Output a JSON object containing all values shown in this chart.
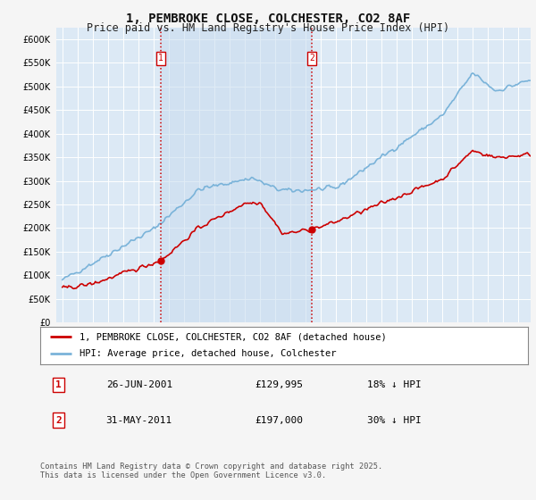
{
  "title": "1, PEMBROKE CLOSE, COLCHESTER, CO2 8AF",
  "subtitle": "Price paid vs. HM Land Registry's House Price Index (HPI)",
  "background_color": "#dce9f5",
  "shade_color": "#dce9f5",
  "grid_color": "#ffffff",
  "line1_color": "#cc0000",
  "line2_color": "#7ab3d9",
  "vline_color": "#cc0000",
  "ylim": [
    0,
    625000
  ],
  "xlim_left": 1994.6,
  "xlim_right": 2025.8,
  "legend_entries": [
    "1, PEMBROKE CLOSE, COLCHESTER, CO2 8AF (detached house)",
    "HPI: Average price, detached house, Colchester"
  ],
  "table_rows": [
    {
      "num": "1",
      "date": "26-JUN-2001",
      "price": "£129,995",
      "hpi": "18% ↓ HPI"
    },
    {
      "num": "2",
      "date": "31-MAY-2011",
      "price": "£197,000",
      "hpi": "30% ↓ HPI"
    }
  ],
  "sale1_x": 2001.48,
  "sale1_y": 129995,
  "sale2_x": 2011.41,
  "sale2_y": 197000,
  "footnote": "Contains HM Land Registry data © Crown copyright and database right 2025.\nThis data is licensed under the Open Government Licence v3.0."
}
